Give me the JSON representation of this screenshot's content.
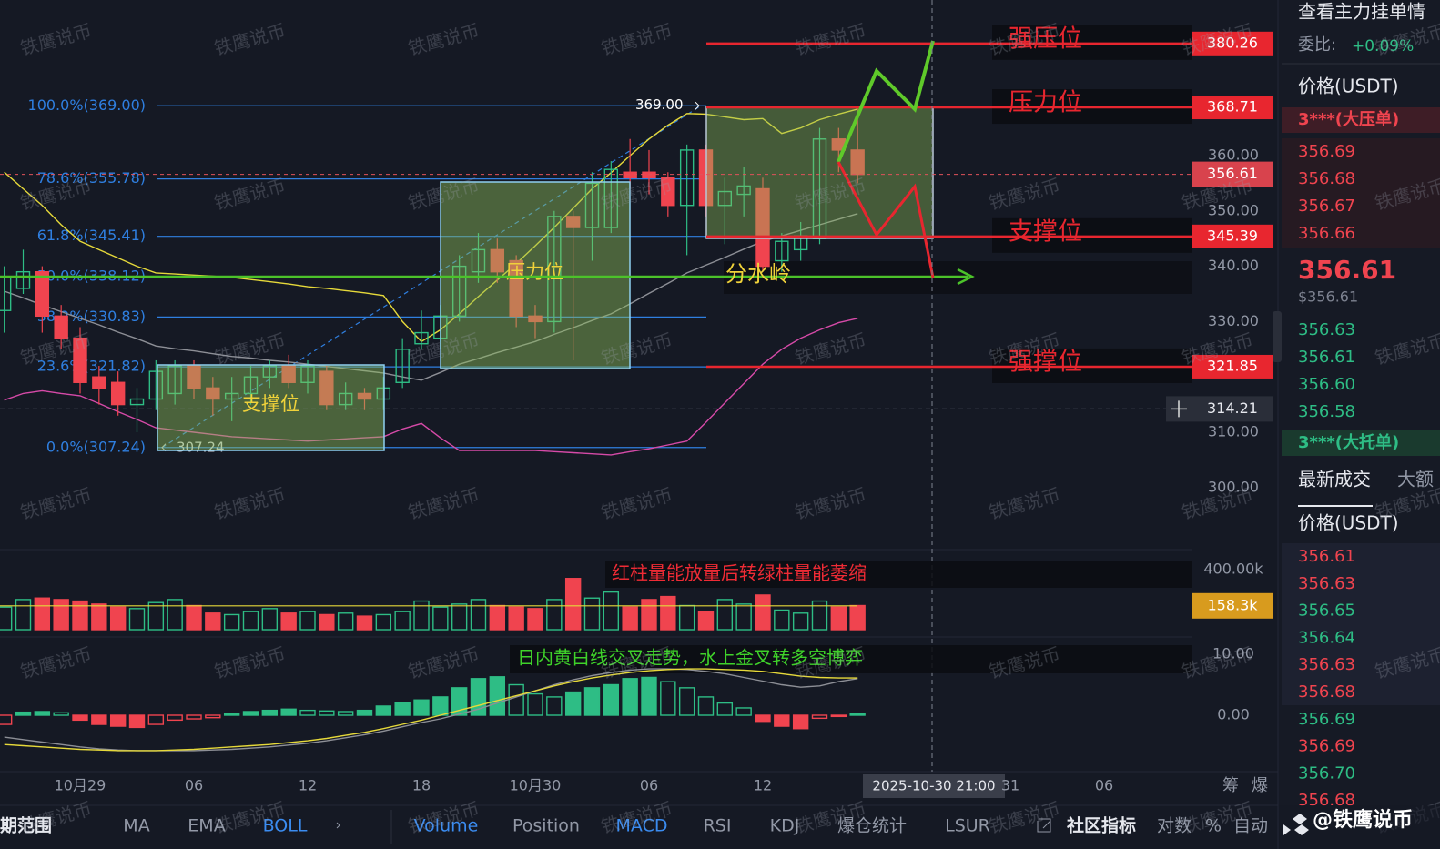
{
  "colors": {
    "up": "#2ebd85",
    "down": "#f0444f",
    "fib": "#2f7fe0",
    "level": "#e8262f",
    "boll_upper": "#e6d93a",
    "boll_middle": "#8d8f96",
    "boll_lower": "#d64aa8",
    "note": "#f0d23a"
  },
  "price_axis": {
    "ticks": [
      {
        "value": 360,
        "label": "360.00"
      },
      {
        "value": 350,
        "label": "350.00"
      },
      {
        "value": 340,
        "label": "340.00"
      },
      {
        "value": 330,
        "label": "330.00"
      },
      {
        "value": 310,
        "label": "310.00"
      },
      {
        "value": 300,
        "label": "300.00"
      }
    ]
  },
  "fib_levels": [
    {
      "label": "100.0%(369.00)",
      "value": 369
    },
    {
      "label": "78.6%(355.78)",
      "value": 355.78
    },
    {
      "label": "61.8%(345.41)",
      "value": 345.41
    },
    {
      "label": "50.0%(338.12)",
      "value": 338.12
    },
    {
      "label": "38.2%(330.83)",
      "value": 330.83
    },
    {
      "label": "23.6%(321.82)",
      "value": 321.82
    },
    {
      "label": "0.0%(307.24)",
      "value": 307.24
    }
  ],
  "fib_high": {
    "value": 369,
    "label": "369.00"
  },
  "fib_low": {
    "value": 307.24,
    "label": "307.24"
  },
  "levels": [
    {
      "name": "强压位",
      "value": 380.26,
      "label": "380.26"
    },
    {
      "name": "压力位",
      "value": 368.71,
      "label": "368.71"
    },
    {
      "name": "支撑位",
      "value": 345.39,
      "label": "345.39"
    },
    {
      "name": "强撑位",
      "value": 321.85,
      "label": "321.85"
    }
  ],
  "current_price": {
    "value": 356.61,
    "label": "356.61"
  },
  "crosshair": {
    "value": 314.21,
    "label": "314.21",
    "time": "2025-10-30 21:00"
  },
  "annotations": {
    "support_box": "支撑位",
    "pressure_box": "压力位",
    "watershed": "分水岭",
    "volume_note": "红柱量能放量后转绿柱量能萎缩",
    "macd_note": "日内黄白线交叉走势，水上金叉转多空博弈"
  },
  "candles": {
    "open": [
      332,
      336,
      339,
      331,
      327,
      320,
      319,
      315,
      316,
      317,
      322,
      318,
      316,
      317,
      320,
      322,
      319,
      321,
      315,
      317,
      316,
      319,
      326,
      327,
      331,
      339,
      343,
      341,
      331,
      330,
      349,
      347,
      347,
      357,
      357,
      356,
      351,
      361,
      351,
      353,
      354,
      341,
      343,
      345,
      363,
      361
    ],
    "high": [
      340,
      343,
      340,
      333,
      329,
      322,
      321,
      318,
      323,
      323,
      323,
      320,
      320,
      322,
      323,
      324,
      323,
      322,
      319,
      318,
      320,
      327,
      332,
      333,
      342,
      346,
      345,
      342,
      333,
      350,
      350,
      357,
      359,
      363,
      361,
      357,
      362,
      362,
      356,
      358,
      356,
      346,
      348,
      365,
      365,
      369
    ],
    "low": [
      328,
      335,
      328,
      325,
      317,
      315,
      313,
      310,
      314,
      315,
      316,
      313,
      312,
      315,
      318,
      318,
      317,
      314,
      314,
      314,
      314,
      318,
      325,
      325,
      330,
      337,
      337,
      329,
      327,
      328,
      323,
      341,
      346,
      354,
      353,
      349,
      342,
      349,
      344,
      349,
      339,
      339,
      341,
      344,
      357,
      355
    ],
    "close": [
      338,
      339,
      331,
      327,
      319,
      318,
      315,
      316,
      321,
      322,
      318,
      316,
      317,
      320,
      322,
      319,
      322,
      315,
      317,
      316,
      318,
      325,
      328,
      331,
      340,
      343,
      339,
      331,
      330,
      349,
      347,
      355,
      357.5,
      356,
      356,
      351,
      361,
      351,
      353.5,
      354.5,
      340,
      344.5,
      345.5,
      363,
      361,
      356.6
    ]
  },
  "boll": {
    "upper": [
      357,
      354,
      351,
      347.5,
      344.5,
      343,
      341.5,
      340,
      338.8,
      338.6,
      338.4,
      338.2,
      338,
      337.6,
      337.2,
      336.8,
      336.3,
      336,
      335.6,
      335.2,
      334.7,
      330,
      326.4,
      328.5,
      331.4,
      334.5,
      337.5,
      340.5,
      343.7,
      347,
      350.5,
      354,
      356.9,
      360,
      363,
      365.5,
      367.6,
      367.5,
      367,
      366.5,
      366.7,
      364,
      365,
      366.5,
      367.5,
      368.4
    ],
    "middle": [
      335.5,
      334.3,
      333,
      331.8,
      330.6,
      329.4,
      328.1,
      326.9,
      325.6,
      325.1,
      324.7,
      324.2,
      323.7,
      323.4,
      323,
      322.7,
      322.3,
      321.9,
      321.5,
      321.1,
      320.7,
      320,
      319.4,
      320.8,
      322.3,
      323.3,
      324.4,
      325.4,
      326.4,
      327.7,
      328.9,
      330.2,
      331.4,
      333.2,
      335.1,
      336.9,
      338.8,
      340.2,
      341.6,
      343.1,
      344.5,
      345.5,
      346.5,
      347.5,
      348.5,
      349.5
    ],
    "lower": [
      315.8,
      317,
      317.5,
      317,
      316.6,
      315.2,
      313.7,
      312.3,
      310.8,
      310.4,
      310,
      309.6,
      309.2,
      309,
      308.8,
      308.6,
      308.4,
      308.6,
      308.8,
      309,
      309.2,
      310.6,
      311.6,
      309,
      306.7,
      306.7,
      306.7,
      306.7,
      306.7,
      306.5,
      306.3,
      306.1,
      305.9,
      306.5,
      307,
      307.7,
      308.4,
      311.8,
      315.3,
      318.8,
      322.3,
      325,
      327,
      328.5,
      329.8,
      330.6
    ]
  },
  "volume": {
    "values": [
      150,
      200,
      210,
      200,
      190,
      170,
      150,
      140,
      180,
      200,
      160,
      110,
      100,
      120,
      140,
      110,
      120,
      100,
      110,
      90,
      100,
      120,
      190,
      150,
      170,
      200,
      160,
      150,
      140,
      200,
      340,
      210,
      250,
      150,
      200,
      220,
      160,
      120,
      200,
      170,
      230,
      130,
      110,
      190,
      150,
      160
    ],
    "ticks": [
      {
        "value": 400,
        "label": "400.00k"
      }
    ],
    "ma": {
      "value": 158.3,
      "label": "158.3k"
    }
  },
  "macd": {
    "histogram": [
      -1.5,
      0.5,
      0.6,
      0.4,
      -0.8,
      -1.5,
      -1.8,
      -2.0,
      -1.5,
      -0.8,
      -0.6,
      -0.4,
      0.3,
      0.6,
      0.8,
      1.0,
      0.8,
      0.7,
      0.6,
      0.8,
      1.5,
      2.0,
      2.5,
      3.0,
      4.5,
      6.0,
      6.3,
      5.0,
      3.5,
      3.0,
      3.8,
      4.5,
      5.0,
      6.0,
      6.2,
      5.5,
      4.5,
      3.0,
      2.0,
      1.2,
      -1.0,
      -1.8,
      -2.2,
      -0.5,
      -0.2,
      0.2
    ],
    "dif": [
      -4.8,
      -5,
      -5.2,
      -5.4,
      -5.6,
      -5.7,
      -5.8,
      -5.8,
      -5.8,
      -5.7,
      -5.6,
      -5.4,
      -5.2,
      -5,
      -4.8,
      -4.5,
      -4.2,
      -3.8,
      -3.3,
      -2.8,
      -2.2,
      -1.5,
      -0.8,
      0,
      0.8,
      1.6,
      2.4,
      3.2,
      4,
      4.8,
      5.5,
      6.1,
      6.6,
      7,
      7.3,
      7.5,
      7.6,
      7.6,
      7.5,
      7.4,
      7.2,
      6.8,
      6.4,
      6.2,
      6.1,
      6.1
    ],
    "dea": [
      -3.6,
      -4,
      -4.4,
      -4.8,
      -5.2,
      -5.5,
      -5.7,
      -5.8,
      -5.8,
      -5.8,
      -5.8,
      -5.7,
      -5.6,
      -5.4,
      -5.2,
      -4.9,
      -4.6,
      -4.2,
      -3.7,
      -3.2,
      -2.6,
      -1.9,
      -1.2,
      -0.6,
      0.2,
      1,
      2,
      3,
      4,
      5,
      5.8,
      6.5,
      7,
      7.4,
      7.6,
      7.6,
      7.5,
      7.2,
      6.8,
      6.2,
      5.6,
      5,
      4.6,
      4.8,
      5.5,
      6
    ],
    "ticks": [
      {
        "value": 10,
        "label": "10.00"
      },
      {
        "value": 0,
        "label": "0.00"
      }
    ]
  },
  "time_axis": [
    "10月29",
    "06",
    "12",
    "18",
    "10月30",
    "06",
    "12",
    null,
    "31",
    "06"
  ],
  "side_buttons": [
    "筹",
    "爆"
  ],
  "orderbook": {
    "title": "查看主力挂单情",
    "ratio_label": "委比:",
    "ratio": "+0.09%",
    "price_header": "价格(USDT)",
    "ask_wall": "3***(大压单)",
    "asks": [
      "356.69",
      "356.68",
      "356.67",
      "356.66"
    ],
    "last": "356.61",
    "last_usd": "$356.61",
    "bids": [
      "356.63",
      "356.61",
      "356.60",
      "356.58"
    ],
    "bid_wall": "3***(大托单)"
  },
  "trades": {
    "tabs": [
      "最新成交",
      "大额"
    ],
    "price_header": "价格(USDT)",
    "rows": [
      {
        "price": "356.61",
        "color": "#f0444f"
      },
      {
        "price": "356.63",
        "color": "#f0444f"
      },
      {
        "price": "356.65",
        "color": "#2ebd85"
      },
      {
        "price": "356.64",
        "color": "#2ebd85"
      },
      {
        "price": "356.63",
        "color": "#f0444f"
      },
      {
        "price": "356.68",
        "color": "#f0444f"
      },
      {
        "price": "356.69",
        "color": "#2ebd85"
      },
      {
        "price": "356.69",
        "color": "#f0444f"
      },
      {
        "price": "356.70",
        "color": "#2ebd85"
      },
      {
        "price": "356.68",
        "color": "#f0444f"
      }
    ]
  },
  "toolbar": [
    {
      "label": "期范围",
      "active": false
    },
    {
      "label": "MA",
      "active": false
    },
    {
      "label": "EMA",
      "active": false
    },
    {
      "label": "BOLL",
      "active": true
    },
    {
      "label": "Volume",
      "active": true
    },
    {
      "label": "Position",
      "active": false
    },
    {
      "label": "MACD",
      "active": true
    },
    {
      "label": "RSI",
      "active": false
    },
    {
      "label": "KDJ",
      "active": false
    },
    {
      "label": "爆仓统计",
      "active": false
    },
    {
      "label": "LSUR",
      "active": false
    },
    {
      "label": "社区指标",
      "active": false
    },
    {
      "label": "对数",
      "active": false
    },
    {
      "label": "%",
      "active": false
    },
    {
      "label": "自动",
      "active": false
    }
  ],
  "watermark": "铁鹰说币",
  "brand": "@铁鹰说币"
}
